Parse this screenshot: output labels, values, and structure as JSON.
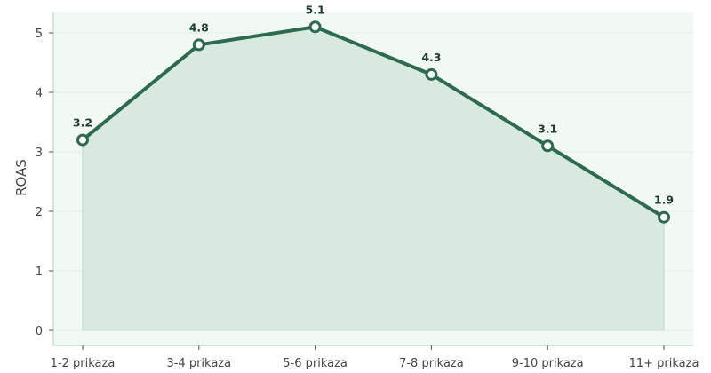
{
  "chart_data": {
    "type": "line",
    "categories": [
      "1-2 prikaza",
      "3-4 prikaza",
      "5-6 prikaza",
      "7-8 prikaza",
      "9-10 prikaza",
      "11+ prikaza"
    ],
    "series": [
      {
        "values": [
          3.2,
          4.8,
          5.1,
          4.3,
          3.1,
          1.9
        ]
      }
    ],
    "data_labels": [
      "3.2",
      "4.8",
      "5.1",
      "4.3",
      "3.1",
      "1.9"
    ],
    "title": "",
    "xlabel": "",
    "ylabel": "ROAS",
    "ylim": [
      0,
      5.2
    ],
    "yticks": [
      "0",
      "1",
      "2",
      "3",
      "4",
      "5"
    ],
    "ytick_values": [
      0,
      1,
      2,
      3,
      4,
      5
    ],
    "grid": true,
    "area_fill": true,
    "colors": {
      "line": "#2d6a4f",
      "area": "#d8eadf",
      "plot_bg": "#f2f8f4",
      "axis": "#b7dcc4",
      "grid": "#e3efe7"
    }
  }
}
